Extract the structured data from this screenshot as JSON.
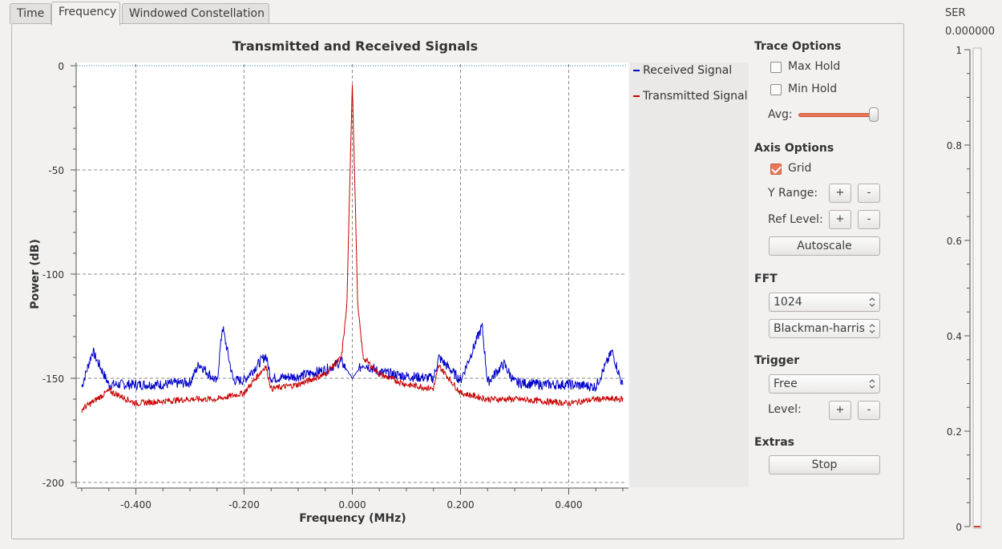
{
  "tabs": [
    {
      "label": "Time",
      "active": false
    },
    {
      "label": "Frequency",
      "active": true
    },
    {
      "label": "Windowed Constellation",
      "active": false
    }
  ],
  "chart_data": {
    "type": "line",
    "title": "Transmitted and Received Signals",
    "xlabel": "Frequency (MHz)",
    "ylabel": "Power (dB)",
    "xlim": [
      -0.5,
      0.5
    ],
    "ylim": [
      -200,
      0
    ],
    "x_ticks": [
      "-0.400",
      "-0.200",
      "0.000",
      "0.200",
      "0.400"
    ],
    "y_ticks": [
      "0",
      "-50",
      "-100",
      "-150",
      "-200"
    ],
    "grid": true,
    "legend_position": "right",
    "series": [
      {
        "name": "Received Signal",
        "color": "#0000c8",
        "x": [
          -0.5,
          -0.48,
          -0.45,
          -0.4,
          -0.35,
          -0.3,
          -0.283,
          -0.25,
          -0.24,
          -0.22,
          -0.2,
          -0.16,
          -0.15,
          -0.1,
          -0.05,
          -0.02,
          0.0,
          0.02,
          0.05,
          0.1,
          0.15,
          0.16,
          0.2,
          0.24,
          0.25,
          0.28,
          0.3,
          0.35,
          0.4,
          0.45,
          0.48,
          0.5
        ],
        "y": [
          -154,
          -137,
          -153,
          -153,
          -153,
          -152,
          -143,
          -152,
          -125,
          -151,
          -151,
          -139,
          -150,
          -149,
          -146,
          -142,
          -150,
          -143,
          -147,
          -149,
          -150,
          -140,
          -151,
          -125,
          -152,
          -143,
          -152,
          -153,
          -153,
          -154,
          -137,
          -154
        ]
      },
      {
        "name": "Transmitted Signal",
        "color": "#c80000",
        "x": [
          -0.5,
          -0.45,
          -0.4,
          -0.35,
          -0.3,
          -0.25,
          -0.2,
          -0.16,
          -0.15,
          -0.1,
          -0.05,
          -0.02,
          -0.01,
          -0.005,
          0.0,
          0.005,
          0.01,
          0.02,
          0.05,
          0.1,
          0.15,
          0.16,
          0.2,
          0.25,
          0.3,
          0.35,
          0.4,
          0.45,
          0.5
        ],
        "y": [
          -165,
          -156,
          -162,
          -161,
          -160,
          -160,
          -157,
          -144,
          -155,
          -153,
          -148,
          -140,
          -115,
          -60,
          -9,
          -60,
          -115,
          -140,
          -148,
          -153,
          -155,
          -144,
          -157,
          -160,
          -160,
          -161,
          -162,
          -160,
          -160
        ]
      }
    ]
  },
  "controls": {
    "trace_options": "Trace Options",
    "max_hold": {
      "label": "Max Hold",
      "checked": false
    },
    "min_hold": {
      "label": "Min Hold",
      "checked": false
    },
    "avg_label": "Avg:",
    "avg_value": 1.0,
    "axis_options": "Axis Options",
    "grid": {
      "label": "Grid",
      "checked": true
    },
    "y_range_label": "Y Range:",
    "ref_level_label": "Ref Level:",
    "plus": "+",
    "minus": "-",
    "autoscale": "Autoscale",
    "fft_head": "FFT",
    "fft_size": "1024",
    "fft_window": "Blackman-harris",
    "trigger_head": "Trigger",
    "trigger_mode": "Free",
    "level_label": "Level:",
    "extras_head": "Extras",
    "stop": "Stop"
  },
  "ser": {
    "title": "SER",
    "value": "0.000000",
    "ticks": [
      "1",
      "0.8",
      "0.6",
      "0.4",
      "0.2",
      "0"
    ],
    "level": 0.0
  }
}
